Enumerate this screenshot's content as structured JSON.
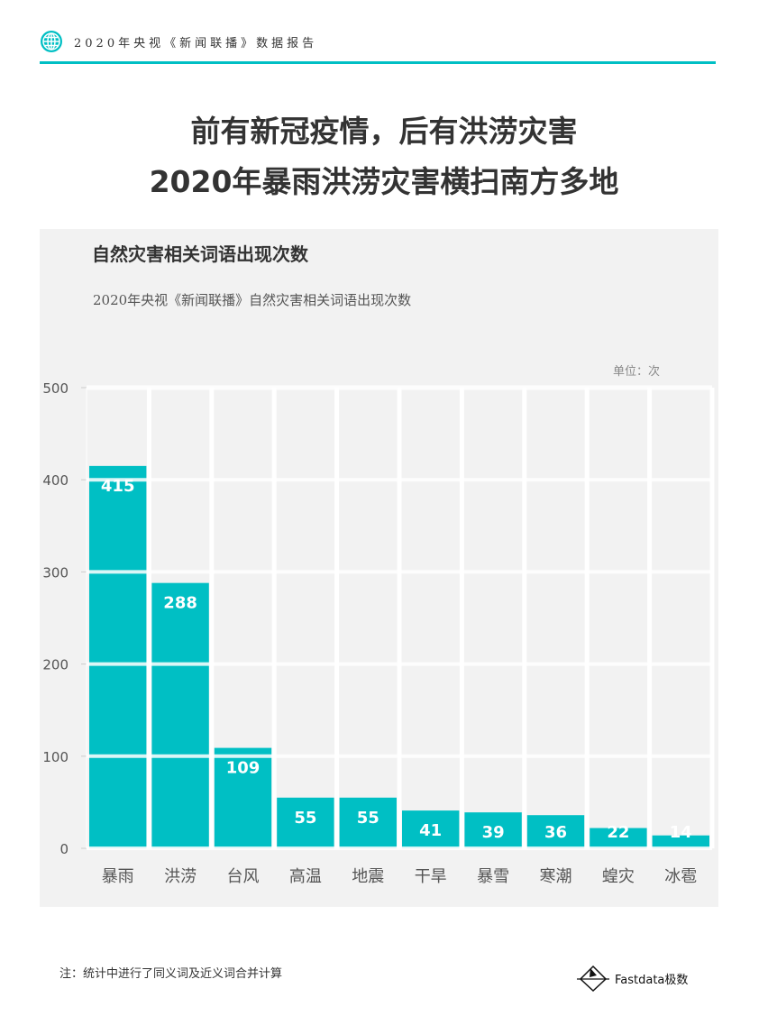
{
  "header": {
    "text": "2020年央视《新闻联播》数据报告",
    "icon": "globe-icon",
    "accent": "#00bfc4"
  },
  "title": {
    "line1": "前有新冠疫情，后有洪涝灾害",
    "line2": "2020年暴雨洪涝灾害横扫南方多地"
  },
  "chart_data": {
    "type": "bar",
    "title": "自然灾害相关词语出现次数",
    "subtitle": "2020年央视《新闻联播》自然灾害相关词语出现次数",
    "unit": "单位：次",
    "categories": [
      "暴雨",
      "洪涝",
      "台风",
      "高温",
      "地震",
      "干旱",
      "暴雪",
      "寒潮",
      "蝗灾",
      "冰雹"
    ],
    "values": [
      415,
      288,
      109,
      55,
      55,
      41,
      39,
      36,
      22,
      14
    ],
    "ylim": [
      0,
      500
    ],
    "yticks": [
      0,
      100,
      200,
      300,
      400,
      500
    ],
    "grid": true,
    "bar_color": "#00bfc4"
  },
  "footer": {
    "note": "注：统计中进行了同义词及近义词合并计算",
    "logo": "Fastdata极数"
  }
}
